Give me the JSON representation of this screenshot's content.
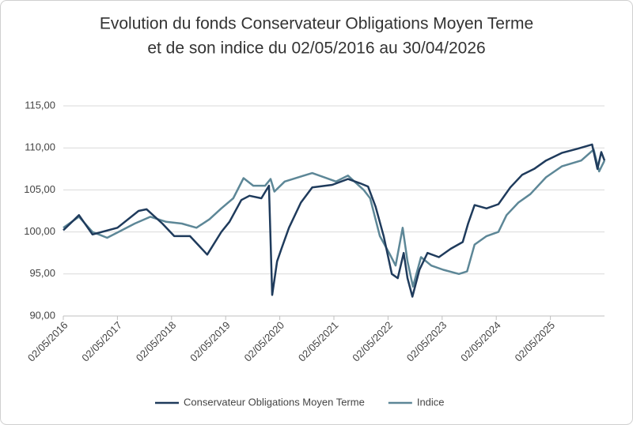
{
  "chart_data": {
    "type": "line",
    "title": [
      "Evolution du fonds Conservateur Obligations Moyen Terme",
      "et de son indice du 02/05/2016 au 30/04/2026"
    ],
    "xlim": [
      2016.33,
      2026.33
    ],
    "xticks": [
      {
        "value": 2016.33,
        "label": "02/05/2016"
      },
      {
        "value": 2017.33,
        "label": "02/05/2017"
      },
      {
        "value": 2018.33,
        "label": "02/05/2018"
      },
      {
        "value": 2019.33,
        "label": "02/05/2019"
      },
      {
        "value": 2020.33,
        "label": "02/05/2020"
      },
      {
        "value": 2021.33,
        "label": "02/05/2021"
      },
      {
        "value": 2022.33,
        "label": "02/05/2022"
      },
      {
        "value": 2023.33,
        "label": "02/05/2023"
      },
      {
        "value": 2024.33,
        "label": "02/05/2024"
      },
      {
        "value": 2025.33,
        "label": "02/05/2025"
      }
    ],
    "ylim": [
      90,
      115
    ],
    "yticks": [
      {
        "value": 90,
        "label": "90,00"
      },
      {
        "value": 95,
        "label": "95,00"
      },
      {
        "value": 100,
        "label": "100,00"
      },
      {
        "value": 105,
        "label": "105,00"
      },
      {
        "value": 110,
        "label": "110,00"
      },
      {
        "value": 115,
        "label": "115,00"
      }
    ],
    "grid": true,
    "legend": "bottom",
    "series": [
      {
        "name": "Conservateur Obligations Moyen Terme",
        "color": "#1f3b5c",
        "x": [
          2016.33,
          2016.62,
          2016.87,
          2017.33,
          2017.72,
          2017.87,
          2018.16,
          2018.38,
          2018.67,
          2018.99,
          2019.25,
          2019.4,
          2019.62,
          2019.77,
          2019.99,
          2020.13,
          2020.19,
          2020.28,
          2020.36,
          2020.5,
          2020.72,
          2020.93,
          2021.3,
          2021.59,
          2021.81,
          2021.96,
          2022.1,
          2022.25,
          2022.4,
          2022.51,
          2022.62,
          2022.69,
          2022.78,
          2022.91,
          2023.06,
          2023.27,
          2023.49,
          2023.71,
          2023.81,
          2023.93,
          2024.15,
          2024.37,
          2024.59,
          2024.81,
          2025.03,
          2025.25,
          2025.54,
          2025.83,
          2026.1,
          2026.2,
          2026.27,
          2026.33
        ],
        "values": [
          100.2,
          102,
          99.7,
          100.5,
          102.5,
          102.7,
          101,
          99.5,
          99.5,
          97.3,
          100,
          101.2,
          103.8,
          104.3,
          104,
          105.5,
          92.5,
          96.5,
          98,
          100.5,
          103.5,
          105.3,
          105.6,
          106.3,
          105.8,
          105.4,
          103,
          99.5,
          95,
          94.5,
          97.5,
          94.5,
          92.3,
          95.5,
          97.5,
          97,
          98,
          98.8,
          101,
          103.2,
          102.8,
          103.3,
          105.3,
          106.8,
          107.5,
          108.5,
          109.4,
          109.9,
          110.4,
          107.5,
          109.5,
          108.5
        ]
      },
      {
        "name": "Indice",
        "color": "#5d8797",
        "x": [
          2016.33,
          2016.62,
          2016.87,
          2017.14,
          2017.35,
          2017.65,
          2017.94,
          2018.23,
          2018.52,
          2018.79,
          2019.03,
          2019.25,
          2019.47,
          2019.66,
          2019.84,
          2020.06,
          2020.16,
          2020.23,
          2020.42,
          2020.72,
          2020.93,
          2021.15,
          2021.37,
          2021.59,
          2021.88,
          2022.0,
          2022.18,
          2022.35,
          2022.47,
          2022.6,
          2022.69,
          2022.79,
          2022.94,
          2023.13,
          2023.35,
          2023.64,
          2023.79,
          2023.93,
          2024.15,
          2024.37,
          2024.52,
          2024.74,
          2024.96,
          2025.25,
          2025.54,
          2025.9,
          2026.13,
          2026.23,
          2026.33
        ],
        "values": [
          100.5,
          101.8,
          100,
          99.3,
          100,
          101,
          101.8,
          101.2,
          101,
          100.5,
          101.5,
          102.8,
          104,
          106.4,
          105.5,
          105.5,
          106.3,
          104.8,
          106,
          106.6,
          107,
          106.5,
          106,
          106.7,
          105,
          104,
          99.5,
          97.5,
          96,
          100.5,
          96.5,
          93.5,
          97,
          96,
          95.5,
          95,
          95.3,
          98.5,
          99.5,
          100,
          102,
          103.5,
          104.5,
          106.5,
          107.8,
          108.5,
          109.8,
          107.2,
          108.5
        ]
      }
    ]
  }
}
